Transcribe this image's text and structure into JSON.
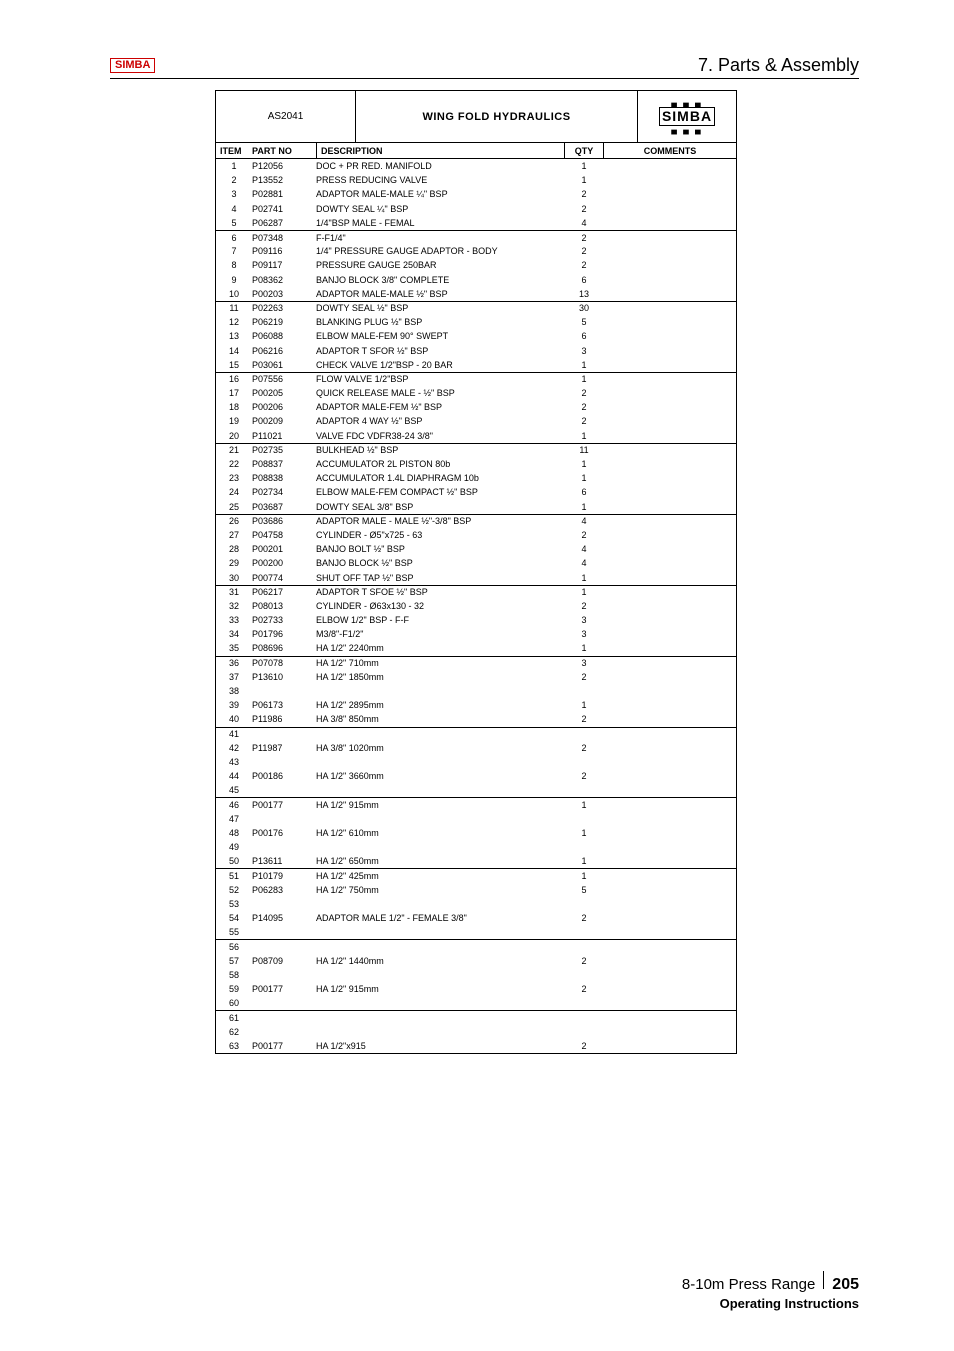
{
  "header": {
    "logo_text": "SIMBA",
    "section_title": "7. Parts & Assembly"
  },
  "table_header": {
    "doc_code": "AS2041",
    "title": "WING FOLD HYDRAULICS",
    "logo_text": "SIMBA",
    "col_item": "ITEM",
    "col_part": "PART NO",
    "col_desc": "DESCRIPTION",
    "col_qty": "QTY",
    "col_comments": "COMMENTS"
  },
  "rows": [
    {
      "item": "1",
      "part": "P12056",
      "desc": "DOC + PR RED. MANIFOLD",
      "qty": "1",
      "div": false
    },
    {
      "item": "2",
      "part": "P13552",
      "desc": "PRESS REDUCING VALVE",
      "qty": "1",
      "div": false
    },
    {
      "item": "3",
      "part": "P02881",
      "desc": "ADAPTOR MALE-MALE ¼\" BSP",
      "qty": "2",
      "div": false
    },
    {
      "item": "4",
      "part": "P02741",
      "desc": "DOWTY SEAL ¼\" BSP",
      "qty": "2",
      "div": false
    },
    {
      "item": "5",
      "part": "P06287",
      "desc": "1/4\"BSP MALE - FEMAL",
      "qty": "4",
      "div": false
    },
    {
      "item": "6",
      "part": "P07348",
      "desc": "F-F1/4\"",
      "qty": "2",
      "div": true
    },
    {
      "item": "7",
      "part": "P09116",
      "desc": "1/4\" PRESSURE GAUGE ADAPTOR - BODY",
      "qty": "2",
      "div": false
    },
    {
      "item": "8",
      "part": "P09117",
      "desc": "PRESSURE GAUGE 250BAR",
      "qty": "2",
      "div": false
    },
    {
      "item": "9",
      "part": "P08362",
      "desc": "BANJO BLOCK 3/8\" COMPLETE",
      "qty": "6",
      "div": false
    },
    {
      "item": "10",
      "part": "P00203",
      "desc": "ADAPTOR MALE-MALE ½\" BSP",
      "qty": "13",
      "div": false
    },
    {
      "item": "11",
      "part": "P02263",
      "desc": "DOWTY SEAL ½\" BSP",
      "qty": "30",
      "div": true
    },
    {
      "item": "12",
      "part": "P06219",
      "desc": "BLANKING PLUG ½\" BSP",
      "qty": "5",
      "div": false
    },
    {
      "item": "13",
      "part": "P06088",
      "desc": "ELBOW MALE-FEM 90° SWEPT",
      "qty": "6",
      "div": false
    },
    {
      "item": "14",
      "part": "P06216",
      "desc": "ADAPTOR T SFOR ½\" BSP",
      "qty": "3",
      "div": false
    },
    {
      "item": "15",
      "part": "P03061",
      "desc": "CHECK VALVE 1/2\"BSP - 20 BAR",
      "qty": "1",
      "div": false
    },
    {
      "item": "16",
      "part": "P07556",
      "desc": "FLOW VALVE 1/2\"BSP",
      "qty": "1",
      "div": true
    },
    {
      "item": "17",
      "part": "P00205",
      "desc": "QUICK RELEASE MALE - ½\" BSP",
      "qty": "2",
      "div": false
    },
    {
      "item": "18",
      "part": "P00206",
      "desc": "ADAPTOR MALE-FEM ½\" BSP",
      "qty": "2",
      "div": false
    },
    {
      "item": "19",
      "part": "P00209",
      "desc": "ADAPTOR 4 WAY ½\" BSP",
      "qty": "2",
      "div": false
    },
    {
      "item": "20",
      "part": "P11021",
      "desc": "VALVE FDC VDFR38-24 3/8\"",
      "qty": "1",
      "div": false
    },
    {
      "item": "21",
      "part": "P02735",
      "desc": "BULKHEAD ½\" BSP",
      "qty": "11",
      "div": true
    },
    {
      "item": "22",
      "part": "P08837",
      "desc": "ACCUMULATOR 2L PISTON 80b",
      "qty": "1",
      "div": false
    },
    {
      "item": "23",
      "part": "P08838",
      "desc": "ACCUMULATOR 1.4L DIAPHRAGM 10b",
      "qty": "1",
      "div": false
    },
    {
      "item": "24",
      "part": "P02734",
      "desc": "ELBOW MALE-FEM COMPACT ½\" BSP",
      "qty": "6",
      "div": false
    },
    {
      "item": "25",
      "part": "P03687",
      "desc": "DOWTY SEAL 3/8\" BSP",
      "qty": "1",
      "div": false
    },
    {
      "item": "26",
      "part": "P03686",
      "desc": "ADAPTOR MALE - MALE ½\"-3/8\" BSP",
      "qty": "4",
      "div": true
    },
    {
      "item": "27",
      "part": "P04758",
      "desc": "CYLINDER - Ø5\"x725 - 63",
      "qty": "2",
      "div": false
    },
    {
      "item": "28",
      "part": "P00201",
      "desc": "BANJO BOLT ½\" BSP",
      "qty": "4",
      "div": false
    },
    {
      "item": "29",
      "part": "P00200",
      "desc": "BANJO BLOCK ½\" BSP",
      "qty": "4",
      "div": false
    },
    {
      "item": "30",
      "part": "P00774",
      "desc": "SHUT OFF TAP ½\" BSP",
      "qty": "1",
      "div": false
    },
    {
      "item": "31",
      "part": "P06217",
      "desc": "ADAPTOR T SFOE ½\" BSP",
      "qty": "1",
      "div": true
    },
    {
      "item": "32",
      "part": "P08013",
      "desc": "CYLINDER - Ø63x130 - 32",
      "qty": "2",
      "div": false
    },
    {
      "item": "33",
      "part": "P02733",
      "desc": "ELBOW 1/2\" BSP - F-F",
      "qty": "3",
      "div": false
    },
    {
      "item": "34",
      "part": "P01796",
      "desc": "M3/8\"-F1/2\"",
      "qty": "3",
      "div": false
    },
    {
      "item": "35",
      "part": "P08696",
      "desc": "HA 1/2\" 2240mm",
      "qty": "1",
      "div": false
    },
    {
      "item": "36",
      "part": "P07078",
      "desc": "HA 1/2\" 710mm",
      "qty": "3",
      "div": true
    },
    {
      "item": "37",
      "part": "P13610",
      "desc": "HA 1/2\" 1850mm",
      "qty": "2",
      "div": false
    },
    {
      "item": "38",
      "part": "",
      "desc": "",
      "qty": "",
      "div": false
    },
    {
      "item": "39",
      "part": "P06173",
      "desc": "HA 1/2\" 2895mm",
      "qty": "1",
      "div": false
    },
    {
      "item": "40",
      "part": "P11986",
      "desc": "HA 3/8\" 850mm",
      "qty": "2",
      "div": false
    },
    {
      "item": "41",
      "part": "",
      "desc": "",
      "qty": "",
      "div": true
    },
    {
      "item": "42",
      "part": "P11987",
      "desc": "HA 3/8\" 1020mm",
      "qty": "2",
      "div": false
    },
    {
      "item": "43",
      "part": "",
      "desc": "",
      "qty": "",
      "div": false
    },
    {
      "item": "44",
      "part": "P00186",
      "desc": "HA 1/2\" 3660mm",
      "qty": "2",
      "div": false
    },
    {
      "item": "45",
      "part": "",
      "desc": "",
      "qty": "",
      "div": false
    },
    {
      "item": "46",
      "part": "P00177",
      "desc": "HA 1/2\" 915mm",
      "qty": "1",
      "div": true
    },
    {
      "item": "47",
      "part": "",
      "desc": "",
      "qty": "",
      "div": false
    },
    {
      "item": "48",
      "part": "P00176",
      "desc": "HA 1/2\" 610mm",
      "qty": "1",
      "div": false
    },
    {
      "item": "49",
      "part": "",
      "desc": "",
      "qty": "",
      "div": false
    },
    {
      "item": "50",
      "part": "P13611",
      "desc": "HA 1/2\" 650mm",
      "qty": "1",
      "div": false
    },
    {
      "item": "51",
      "part": "P10179",
      "desc": "HA 1/2\" 425mm",
      "qty": "1",
      "div": true
    },
    {
      "item": "52",
      "part": "P06283",
      "desc": "HA 1/2\" 750mm",
      "qty": "5",
      "div": false
    },
    {
      "item": "53",
      "part": "",
      "desc": "",
      "qty": "",
      "div": false
    },
    {
      "item": "54",
      "part": "P14095",
      "desc": "ADAPTOR MALE 1/2\" - FEMALE 3/8\"",
      "qty": "2",
      "div": false
    },
    {
      "item": "55",
      "part": "",
      "desc": "",
      "qty": "",
      "div": false
    },
    {
      "item": "56",
      "part": "",
      "desc": "",
      "qty": "",
      "div": true
    },
    {
      "item": "57",
      "part": "P08709",
      "desc": "HA 1/2\" 1440mm",
      "qty": "2",
      "div": false
    },
    {
      "item": "58",
      "part": "",
      "desc": "",
      "qty": "",
      "div": false
    },
    {
      "item": "59",
      "part": "P00177",
      "desc": "HA 1/2\" 915mm",
      "qty": "2",
      "div": false
    },
    {
      "item": "60",
      "part": "",
      "desc": "",
      "qty": "",
      "div": false
    },
    {
      "item": "61",
      "part": "",
      "desc": "",
      "qty": "",
      "div": true
    },
    {
      "item": "62",
      "part": "",
      "desc": "",
      "qty": "",
      "div": false
    },
    {
      "item": "63",
      "part": "P00177",
      "desc": "HA 1/2\"x915",
      "qty": "2",
      "div": false
    }
  ],
  "footer": {
    "range_text": "8-10m Press Range",
    "page_num": "205",
    "subtitle": "Operating Instructions"
  }
}
